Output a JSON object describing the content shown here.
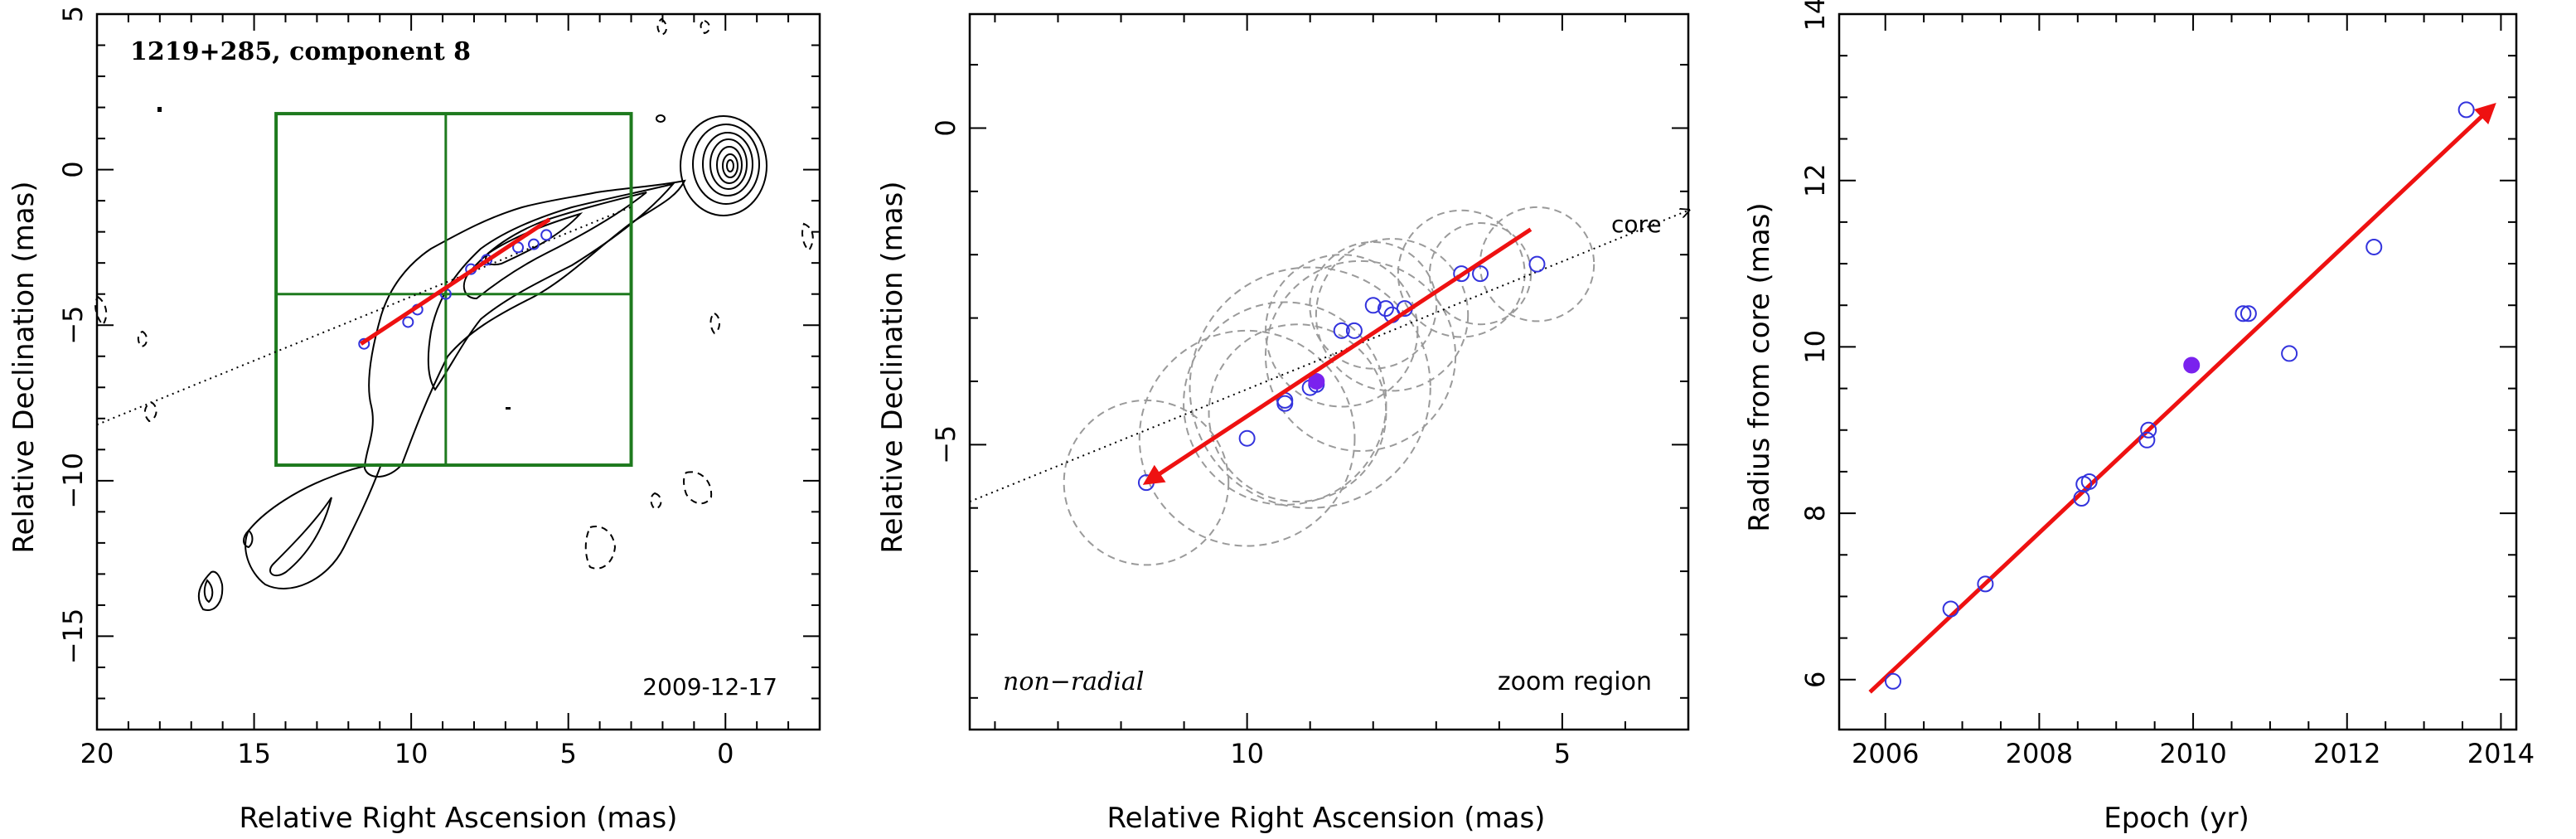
{
  "colors": {
    "fit_line": "#ee1111",
    "box": "#1e7a1e",
    "points": "#3333dd",
    "highlight": "#7a22ee",
    "circles": "#9a9a9a",
    "contours": "#000000"
  },
  "chart_data": [
    {
      "type": "scatter",
      "panel": "contour map",
      "title": "1219+285, component 8",
      "date_label": "2009-12-17",
      "xlabel": "Relative Right Ascension (mas)",
      "ylabel": "Relative Declination (mas)",
      "xlim": [
        20,
        -3
      ],
      "ylim": [
        -18,
        5
      ],
      "xticks": [
        20,
        15,
        10,
        5,
        0
      ],
      "yticks": [
        5,
        0,
        -5,
        -10,
        -15
      ],
      "box": {
        "x": [
          14.3,
          3.0
        ],
        "y": [
          1.8,
          -9.5
        ],
        "cross_x": 8.9,
        "cross_y": -4.0
      },
      "fit_line": {
        "x": [
          11.6,
          5.6
        ],
        "y": [
          -5.6,
          -1.6
        ]
      },
      "direction_line": {
        "x": [
          20,
          3
        ],
        "y": [
          -8.2,
          -1.2
        ]
      },
      "points": {
        "x": [
          11.5,
          10.1,
          9.8,
          8.9,
          8.1,
          7.6,
          6.6,
          6.1,
          5.7
        ],
        "y": [
          -5.6,
          -4.9,
          -4.5,
          -4.0,
          -3.2,
          -2.9,
          -2.5,
          -2.4,
          -2.1
        ]
      }
    },
    {
      "type": "scatter",
      "panel": "zoom region",
      "annotation_left": "non−radial",
      "annotation_right": "zoom region",
      "core_label": "core",
      "xlabel": "Relative Right Ascension (mas)",
      "ylabel": "Relative Declination (mas)",
      "xlim": [
        14.4,
        3.0
      ],
      "ylim": [
        -9.5,
        1.8
      ],
      "xticks": [
        10,
        5
      ],
      "yticks": [
        0,
        -5
      ],
      "fit_line": {
        "x": [
          5.5,
          11.6
        ],
        "y": [
          -1.6,
          -5.6
        ]
      },
      "direction_line": {
        "x": [
          14.4,
          3.0
        ],
        "y": [
          -5.9,
          -1.3
        ]
      },
      "points": {
        "x": [
          11.6,
          10.0,
          9.4,
          9.4,
          9.0,
          8.9,
          8.5,
          8.3,
          8.0,
          7.8,
          7.7,
          7.5,
          6.6,
          6.3,
          5.4
        ],
        "y": [
          -5.6,
          -4.9,
          -4.35,
          -4.3,
          -4.1,
          -4.05,
          -3.2,
          -3.2,
          -2.8,
          -2.85,
          -2.95,
          -2.85,
          -2.3,
          -2.3,
          -2.15
        ]
      },
      "highlight_point": {
        "x": 8.9,
        "y": -4.0
      },
      "circles": [
        {
          "x": 11.6,
          "y": -5.6,
          "r": 1.3
        },
        {
          "x": 10.0,
          "y": -4.9,
          "r": 1.7
        },
        {
          "x": 9.4,
          "y": -4.35,
          "r": 1.6
        },
        {
          "x": 9.0,
          "y": -4.1,
          "r": 1.9
        },
        {
          "x": 9.2,
          "y": -4.5,
          "r": 1.4
        },
        {
          "x": 8.5,
          "y": -3.2,
          "r": 1.2
        },
        {
          "x": 8.2,
          "y": -3.6,
          "r": 1.5
        },
        {
          "x": 8.0,
          "y": -2.8,
          "r": 1.0
        },
        {
          "x": 7.7,
          "y": -2.95,
          "r": 1.2
        },
        {
          "x": 6.6,
          "y": -2.3,
          "r": 1.0
        },
        {
          "x": 6.3,
          "y": -2.3,
          "r": 0.8
        },
        {
          "x": 5.4,
          "y": -2.15,
          "r": 0.9
        }
      ]
    },
    {
      "type": "scatter",
      "panel": "radius vs epoch",
      "xlabel": "Epoch (yr)",
      "ylabel": "Radius from core (mas)",
      "xlim": [
        2005.4,
        2014.2
      ],
      "ylim": [
        5.4,
        14
      ],
      "xticks": [
        2006,
        2008,
        2010,
        2012,
        2014
      ],
      "yticks": [
        6,
        8,
        10,
        12,
        14
      ],
      "fit_line": {
        "x": [
          2005.8,
          2013.9
        ],
        "y": [
          5.85,
          12.9
        ]
      },
      "points": {
        "x": [
          2006.1,
          2006.85,
          2007.3,
          2008.55,
          2008.58,
          2008.65,
          2009.4,
          2009.42,
          2010.65,
          2010.72,
          2011.25,
          2012.35,
          2013.55
        ],
        "y": [
          5.98,
          6.85,
          7.15,
          8.18,
          8.35,
          8.38,
          8.88,
          9.0,
          10.4,
          10.4,
          9.92,
          11.2,
          12.85
        ]
      },
      "highlight_point": {
        "x": 2009.98,
        "y": 9.78
      }
    }
  ]
}
